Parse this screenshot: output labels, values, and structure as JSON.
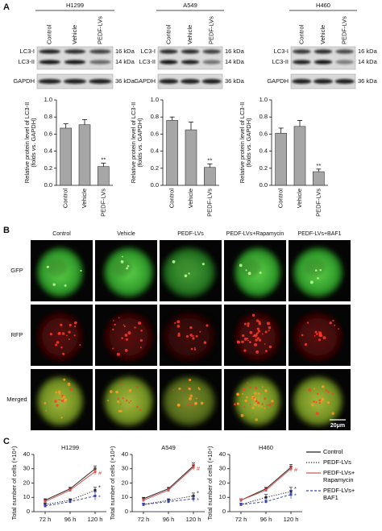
{
  "panels": [
    "A",
    "B",
    "C"
  ],
  "blots": [
    {
      "title": "H1299",
      "lanes": [
        "Control",
        "Vehicle",
        "PEDF-LVs"
      ],
      "bands": [
        "LC3-I",
        "LC3-II"
      ],
      "band_sizes": [
        "16 kDa",
        "14 kDa"
      ],
      "loading_control": "GAPDH",
      "loading_size": "36 kDa"
    },
    {
      "title": "A549",
      "lanes": [
        "Control",
        "Vehicle",
        "PEDF-LVs"
      ],
      "bands": [
        "LC3-I",
        "LC3-II"
      ],
      "band_sizes": [
        "16 kDa",
        "14 kDa"
      ],
      "loading_control": "GAPDH",
      "loading_size": "36 kDa"
    },
    {
      "title": "H460",
      "lanes": [
        "Control",
        "Vehicle",
        "PEDF-LVs"
      ],
      "bands": [
        "LC3-I",
        "LC3-II"
      ],
      "band_sizes": [
        "16 kDa",
        "14 kDa"
      ],
      "loading_control": "GAPDH",
      "loading_size": "36 kDa"
    }
  ],
  "microscopy": {
    "columns": [
      "Control",
      "Vehicle",
      "PEDF-LVs",
      "PEDF-LVs+Rapamycin",
      "PEDF-LVs+BAF1"
    ],
    "rows": [
      "GFP",
      "RFP",
      "Merged"
    ],
    "scale_bar": "20μm"
  },
  "chart_data": [
    {
      "type": "bar",
      "ylabel": [
        "Relative protein level of LC3-II",
        "(folds vs. GAPDH)"
      ],
      "categories": [
        "Control",
        "Vehicle",
        "PEDF-LVs"
      ],
      "values": [
        0.67,
        0.71,
        0.22
      ],
      "errors": [
        0.05,
        0.06,
        0.04
      ],
      "annotations": [
        null,
        null,
        "**"
      ],
      "color": "#a6a6a6",
      "ylim": [
        0,
        1.0
      ],
      "yticks": [
        {
          "value": 0,
          "label": "0.0"
        },
        0.2,
        0.4,
        0.6,
        0.8,
        {
          "value": 1,
          "label": "1.0"
        }
      ]
    },
    {
      "type": "bar",
      "ylabel": [
        "Relative protein level of LC3-II",
        "(folds vs. GAPDH)"
      ],
      "categories": [
        "Control",
        "Vehicle",
        "PEDF-LVs"
      ],
      "values": [
        0.76,
        0.65,
        0.21
      ],
      "errors": [
        0.04,
        0.09,
        0.04
      ],
      "annotations": [
        null,
        null,
        "**"
      ],
      "color": "#a6a6a6",
      "ylim": [
        0,
        1.0
      ],
      "yticks": [
        {
          "value": 0,
          "label": "0.0"
        },
        0.2,
        0.4,
        0.6,
        0.8,
        {
          "value": 1,
          "label": "1.0"
        }
      ]
    },
    {
      "type": "bar",
      "ylabel": [
        "Relative protein level of LC3-II",
        "(folds vs. GAPDH)"
      ],
      "categories": [
        "Control",
        "Vehicle",
        "PEDF-LVs"
      ],
      "values": [
        0.61,
        0.69,
        0.16
      ],
      "errors": [
        0.06,
        0.07,
        0.03
      ],
      "annotations": [
        null,
        null,
        "**"
      ],
      "color": "#a6a6a6",
      "ylim": [
        0,
        1.0
      ],
      "yticks": [
        {
          "value": 0,
          "label": "0.0"
        },
        0.2,
        0.4,
        0.6,
        0.8,
        {
          "value": 1,
          "label": "1.0"
        }
      ]
    },
    {
      "type": "line",
      "title": "H1299",
      "ylabel": "Total number of cells (×10⁴)",
      "categories": [
        "72 h",
        "96 h",
        "120 h"
      ],
      "ylim": [
        0,
        40
      ],
      "yticks": [
        0,
        10,
        20,
        30,
        40
      ],
      "series": [
        {
          "name": "Control",
          "color": "#222222",
          "values": [
            8,
            16,
            30
          ],
          "errors": [
            1,
            1,
            2
          ],
          "annotations": [
            null,
            null,
            null
          ]
        },
        {
          "name": "PEDF-LVs",
          "color": "#222222",
          "dash": "dotted",
          "values": [
            5,
            8,
            15
          ],
          "errors": [
            1,
            1,
            2
          ],
          "annotations": [
            null,
            null,
            "*"
          ]
        },
        {
          "name": "PEDF-LVs+ Rapamycin",
          "color": "#d9534f",
          "values": [
            7,
            15,
            28
          ],
          "errors": [
            1,
            1,
            2
          ],
          "annotations": [
            null,
            null,
            "#"
          ]
        },
        {
          "name": "PEDF-LVs+ BAF1",
          "color": "#3a46b0",
          "dash": "dashed",
          "values": [
            4,
            7,
            11
          ],
          "errors": [
            1,
            1,
            3
          ],
          "annotations": [
            null,
            null,
            "*"
          ]
        }
      ]
    },
    {
      "type": "line",
      "title": "A549",
      "ylabel": "Total number of cells (×10⁴)",
      "categories": [
        "72 h",
        "96 h",
        "120 h"
      ],
      "ylim": [
        0,
        40
      ],
      "yticks": [
        0,
        10,
        20,
        30,
        40
      ],
      "series": [
        {
          "color": "#222222",
          "values": [
            9,
            16,
            32
          ],
          "errors": [
            1,
            1,
            2
          ],
          "annotations": [
            null,
            null,
            null
          ]
        },
        {
          "color": "#222222",
          "dash": "dotted",
          "values": [
            5,
            8,
            11
          ],
          "errors": [
            1,
            1,
            2
          ],
          "annotations": [
            null,
            null,
            "*"
          ]
        },
        {
          "color": "#d9534f",
          "values": [
            8,
            15,
            31
          ],
          "errors": [
            1,
            1,
            2
          ],
          "annotations": [
            null,
            null,
            "#"
          ]
        },
        {
          "color": "#3a46b0",
          "dash": "dashed",
          "values": [
            5,
            7,
            9
          ],
          "errors": [
            1,
            1,
            2
          ],
          "annotations": [
            null,
            null,
            "*"
          ]
        }
      ]
    },
    {
      "type": "line",
      "title": "H460",
      "ylabel": "Total number of cells (×10⁴)",
      "categories": [
        "72 h",
        "96 h",
        "120 h"
      ],
      "ylim": [
        0,
        40
      ],
      "yticks": [
        0,
        10,
        20,
        30,
        40
      ],
      "series": [
        {
          "color": "#222222",
          "values": [
            8,
            16,
            31
          ],
          "errors": [
            1,
            1,
            2
          ],
          "annotations": [
            null,
            null,
            null
          ]
        },
        {
          "color": "#222222",
          "dash": "dotted",
          "values": [
            5,
            10,
            14
          ],
          "errors": [
            1,
            2,
            3
          ],
          "annotations": [
            null,
            null,
            "*"
          ]
        },
        {
          "color": "#d9534f",
          "values": [
            8,
            15,
            30
          ],
          "errors": [
            1,
            1,
            2
          ],
          "annotations": [
            null,
            null,
            "#"
          ]
        },
        {
          "color": "#3a46b0",
          "dash": "dashed",
          "values": [
            5,
            7,
            12
          ],
          "errors": [
            1,
            1,
            3
          ],
          "annotations": [
            null,
            null,
            "*"
          ]
        }
      ]
    }
  ]
}
